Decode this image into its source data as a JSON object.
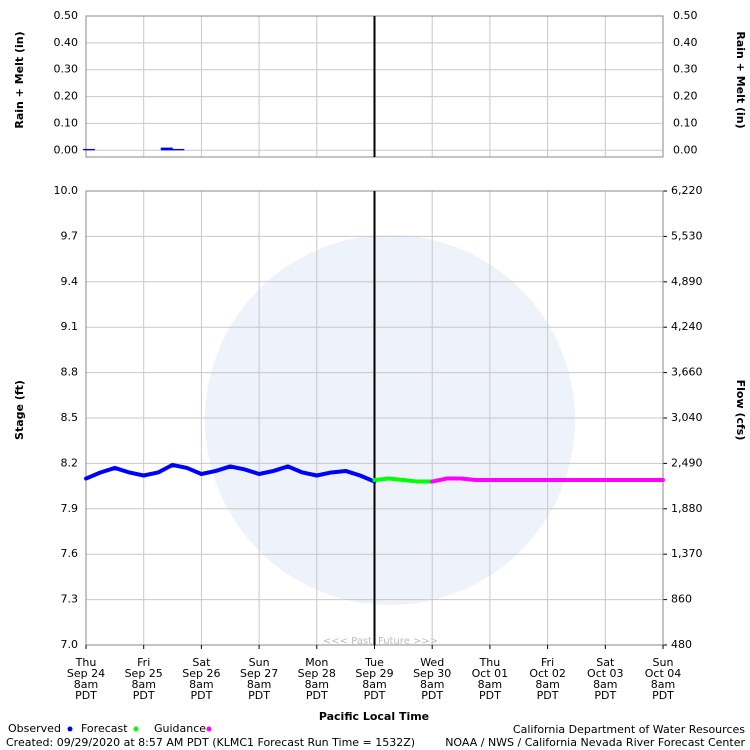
{
  "chart_data": [
    {
      "type": "bar",
      "y_label": "Rain + Melt (in)",
      "ylim": [
        -0.025,
        0.5
      ],
      "yticks": [
        {
          "value": 0.5,
          "label": "0.50"
        },
        {
          "value": 0.4,
          "label": "0.40"
        },
        {
          "value": 0.3,
          "label": "0.30"
        },
        {
          "value": 0.2,
          "label": "0.20"
        },
        {
          "value": 0.1,
          "label": "0.10"
        },
        {
          "value": 0,
          "label": "0.00"
        }
      ],
      "xlim": [
        0,
        10
      ],
      "color": "#0000ff",
      "x": [
        0.05,
        1.4,
        1.6
      ],
      "values": [
        0.005,
        0.01,
        0.005
      ]
    },
    {
      "type": "line",
      "y_label": "Stage (ft)",
      "y2_label": "Flow (cfs)",
      "x_label": "Pacific Local Time",
      "annotations": [
        "<<< Past",
        "Future >>>"
      ],
      "xlim": [
        0,
        10
      ],
      "now": 5,
      "ylim": [
        7.0,
        10.0
      ],
      "yticks": [
        {
          "value": 10,
          "label": "10.0"
        },
        9.7,
        9.4,
        9.1,
        8.8,
        8.5,
        8.2,
        7.9,
        7.6,
        7.3,
        {
          "value": 7,
          "label": "7.0"
        }
      ],
      "y2ticks": [
        {
          "value": 6220,
          "label": "6,220"
        },
        {
          "value": 5530,
          "label": "5,530"
        },
        {
          "value": 4890,
          "label": "4,890"
        },
        {
          "value": 4240,
          "label": "4,240"
        },
        {
          "value": 3660,
          "label": "3,660"
        },
        {
          "value": 3040,
          "label": "3,040"
        },
        {
          "value": 2490,
          "label": "2,490"
        },
        {
          "value": 1880,
          "label": "1,880"
        },
        {
          "value": 1370,
          "label": "1,370"
        },
        860,
        480
      ],
      "xticks": [
        {
          "value": 0,
          "label": "Thu\nSep 24\n8am\nPDT"
        },
        {
          "value": 1,
          "label": "Fri\nSep 25\n8am\nPDT"
        },
        {
          "value": 2,
          "label": "Sat\nSep 26\n8am\nPDT"
        },
        {
          "value": 3,
          "label": "Sun\nSep 27\n8am\nPDT"
        },
        {
          "value": 4,
          "label": "Mon\nSep 28\n8am\nPDT"
        },
        {
          "value": 5,
          "label": "Tue\nSep 29\n8am\nPDT"
        },
        {
          "value": 6,
          "label": "Wed\nSep 30\n8am\nPDT"
        },
        {
          "value": 7,
          "label": "Thu\nOct 01\n8am\nPDT"
        },
        {
          "value": 8,
          "label": "Fri\nOct 02\n8am\nPDT"
        },
        {
          "value": 9,
          "label": "Sat\nOct 03\n8am\nPDT"
        },
        {
          "value": 10,
          "label": "Sun\nOct 04\n8am\nPDT"
        }
      ],
      "series": [
        {
          "name": "Observed",
          "color": "#0000ff",
          "x": [
            0,
            0.25,
            0.5,
            0.75,
            1,
            1.25,
            1.5,
            1.75,
            2,
            2.25,
            2.5,
            2.75,
            3,
            3.25,
            3.5,
            3.75,
            4,
            4.25,
            4.5,
            4.75,
            5
          ],
          "values": [
            8.1,
            8.14,
            8.17,
            8.14,
            8.12,
            8.14,
            8.19,
            8.17,
            8.13,
            8.15,
            8.18,
            8.16,
            8.13,
            8.15,
            8.18,
            8.14,
            8.12,
            8.14,
            8.15,
            8.12,
            8.08
          ]
        },
        {
          "name": "Forecast",
          "color": "#00ff00",
          "x": [
            5,
            5.25,
            5.5,
            5.75,
            6
          ],
          "values": [
            8.09,
            8.1,
            8.09,
            8.08,
            8.08
          ]
        },
        {
          "name": "Guidance",
          "color": "#ff00ff",
          "x": [
            6,
            6.25,
            6.5,
            6.75,
            7,
            7.5,
            8,
            8.5,
            9,
            9.5,
            10
          ],
          "values": [
            8.08,
            8.1,
            8.1,
            8.09,
            8.09,
            8.09,
            8.09,
            8.09,
            8.09,
            8.09,
            8.09
          ]
        }
      ]
    }
  ],
  "footer": {
    "created": "Created: 09/29/2020 at 8:57 AM PDT  (KLMC1 Forecast Run Time = 1532Z)",
    "agency1": "California Department of Water Resources",
    "agency2": "NOAA / NWS / California Nevada River Forecast Center"
  }
}
